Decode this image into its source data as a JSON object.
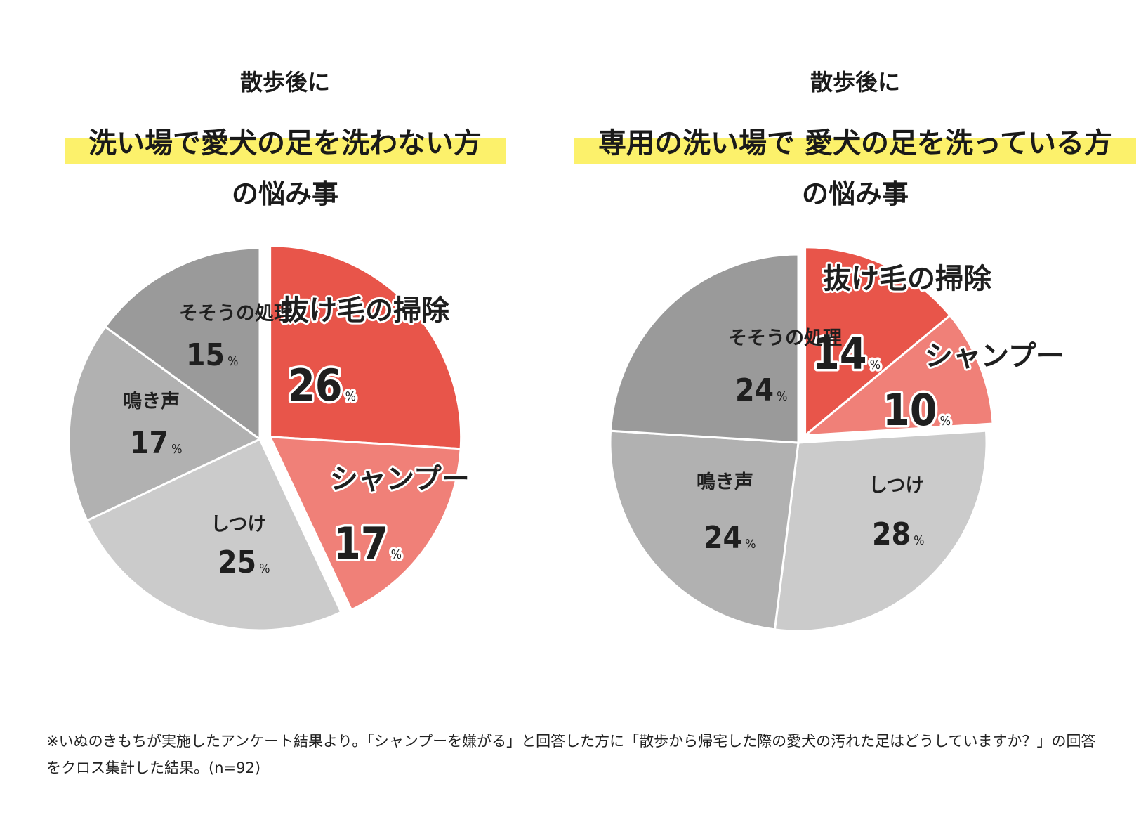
{
  "colors": {
    "highlight": "#fcf16b",
    "red": "#e8554a",
    "salmon": "#f08078",
    "gray_dark": "#9a9a9a",
    "gray_mid": "#b1b1b1",
    "gray_light": "#cbcbcb"
  },
  "percent_sign": "%",
  "note": "※いぬのきもちが実施したアンケート結果より。「シャンプーを嫌がる」と回答した方に「散歩から帰宅した際の愛犬の汚れた足はどうしていますか？」の回答をクロス集計した結果。(n=92)",
  "chart_data": [
    {
      "type": "pie",
      "title_pre": "散歩後に",
      "title": "洗い場で愛犬の足を洗わない方",
      "title_sub": "の悩み事",
      "slices": [
        {
          "label": "抜け毛の掃除",
          "value": 26,
          "highlight": true
        },
        {
          "label": "シャンプー",
          "value": 17,
          "highlight": true
        },
        {
          "label": "しつけ",
          "value": 25,
          "highlight": false
        },
        {
          "label": "鳴き声",
          "value": 17,
          "highlight": false
        },
        {
          "label": "そそうの処理",
          "value": 15,
          "highlight": false
        }
      ]
    },
    {
      "type": "pie",
      "title_pre": "散歩後に",
      "title": "専用の洗い場で 愛犬の足を洗っている方",
      "title_sub": "の悩み事",
      "slices": [
        {
          "label": "抜け毛の掃除",
          "value": 14,
          "highlight": true
        },
        {
          "label": "シャンプー",
          "value": 10,
          "highlight": true
        },
        {
          "label": "しつけ",
          "value": 28,
          "highlight": false
        },
        {
          "label": "鳴き声",
          "value": 24,
          "highlight": false
        },
        {
          "label": "そそうの処理",
          "value": 24,
          "highlight": false
        }
      ]
    }
  ]
}
